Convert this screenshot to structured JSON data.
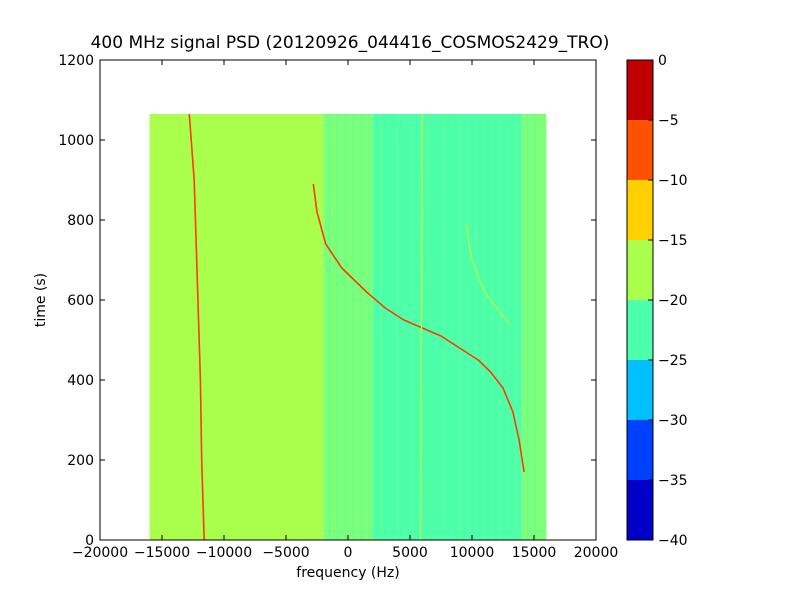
{
  "chart_data": {
    "type": "heatmap",
    "title": "400 MHz signal PSD (20120926_044416_COSMOS2429_TRO)",
    "xlabel": "frequency (Hz)",
    "ylabel": "time (s)",
    "xlim": [
      -20000,
      20000
    ],
    "ylim": [
      0,
      1200
    ],
    "xticks": [
      -20000,
      -15000,
      -10000,
      -5000,
      0,
      5000,
      10000,
      15000,
      20000
    ],
    "xtick_labels": [
      "−20000",
      "−15000",
      "−10000",
      "−5000",
      "0",
      "5000",
      "10000",
      "15000",
      "20000"
    ],
    "yticks": [
      0,
      200,
      400,
      600,
      800,
      1000,
      1200
    ],
    "ytick_labels": [
      "0",
      "200",
      "400",
      "600",
      "800",
      "1000",
      "1200"
    ],
    "grid": false,
    "data_extent": {
      "freq": [
        -16000,
        16000
      ],
      "time": [
        0,
        1065
      ]
    },
    "background_regions": [
      {
        "freq": [
          -16000,
          -2000
        ],
        "level": -17.5,
        "color": "#aaff4d"
      },
      {
        "freq": [
          -2000,
          2000
        ],
        "level": -19.0,
        "color": "#7dff7a"
      },
      {
        "freq": [
          2000,
          14000
        ],
        "level": -22.5,
        "color": "#4dffaa"
      },
      {
        "freq": [
          14000,
          16000
        ],
        "level": -19.0,
        "color": "#7dff7a"
      }
    ],
    "traces": [
      {
        "label": "carrier",
        "points": [
          [
            -12800,
            1065
          ],
          [
            -12400,
            900
          ],
          [
            -12200,
            700
          ],
          [
            -11900,
            400
          ],
          [
            -11800,
            200
          ],
          [
            -11600,
            0
          ]
        ],
        "level": -5,
        "color": "#ff3a00"
      },
      {
        "label": "doppler signal",
        "points": [
          [
            -2800,
            890
          ],
          [
            -2500,
            820
          ],
          [
            -1800,
            740
          ],
          [
            -500,
            680
          ],
          [
            1500,
            620
          ],
          [
            3000,
            580
          ],
          [
            4500,
            550
          ],
          [
            6000,
            530
          ],
          [
            7500,
            510
          ],
          [
            9000,
            480
          ],
          [
            10500,
            450
          ],
          [
            11500,
            420
          ],
          [
            12500,
            380
          ],
          [
            13300,
            320
          ],
          [
            13800,
            250
          ],
          [
            14200,
            170
          ]
        ],
        "level": -5,
        "color": "#ff3a00"
      },
      {
        "label": "vertical line 6000 Hz",
        "points": [
          [
            6000,
            1065
          ],
          [
            5950,
            700
          ],
          [
            5900,
            400
          ],
          [
            5850,
            0
          ]
        ],
        "level": -15,
        "color": "#c8ff30"
      },
      {
        "label": "faint secondary",
        "points": [
          [
            9500,
            790
          ],
          [
            10000,
            700
          ],
          [
            11000,
            620
          ],
          [
            12000,
            580
          ],
          [
            13000,
            540
          ]
        ],
        "level": -17,
        "color": "#b8ff40"
      }
    ],
    "colorbar": {
      "range": [
        -40,
        0
      ],
      "ticks": [
        0,
        -5,
        -10,
        -15,
        -20,
        -25,
        -30,
        -35,
        -40
      ],
      "tick_labels": [
        "0",
        "−5",
        "−10",
        "−15",
        "−20",
        "−25",
        "−30",
        "−35",
        "−40"
      ],
      "bins": [
        {
          "range": [
            -5,
            0
          ],
          "color": "#c00000"
        },
        {
          "range": [
            -10,
            -5
          ],
          "color": "#ff5000"
        },
        {
          "range": [
            -15,
            -10
          ],
          "color": "#ffd000"
        },
        {
          "range": [
            -20,
            -15
          ],
          "color": "#aaff4d"
        },
        {
          "range": [
            -25,
            -20
          ],
          "color": "#4dffaa"
        },
        {
          "range": [
            -30,
            -25
          ],
          "color": "#00c0ff"
        },
        {
          "range": [
            -35,
            -30
          ],
          "color": "#0040ff"
        },
        {
          "range": [
            -40,
            -35
          ],
          "color": "#0000c8"
        }
      ]
    }
  }
}
